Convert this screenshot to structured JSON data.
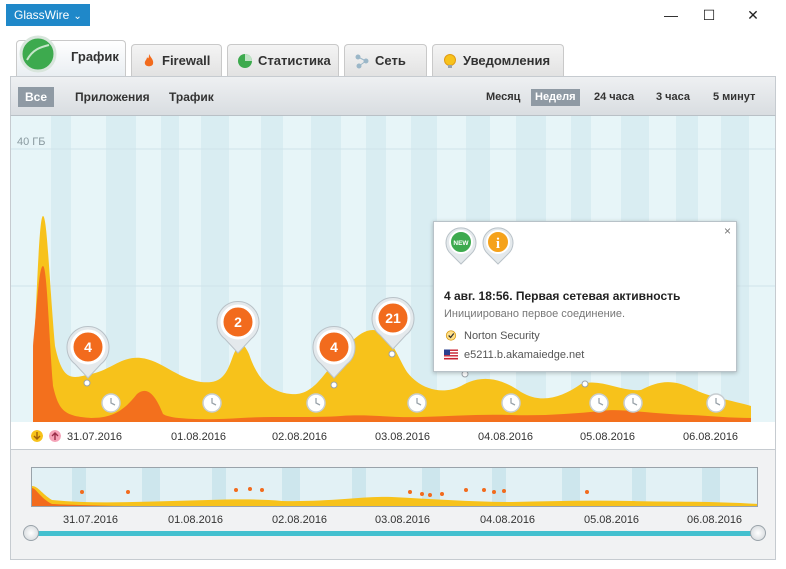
{
  "window": {
    "app_name": "GlassWire",
    "minimize": "—",
    "maximize": "☐",
    "close": "✕"
  },
  "tabs": [
    {
      "label": "График",
      "icon": "graph-icon",
      "active": true
    },
    {
      "label": "Firewall",
      "icon": "flame-icon"
    },
    {
      "label": "Статистика",
      "icon": "pie-icon"
    },
    {
      "label": "Сеть",
      "icon": "network-icon"
    },
    {
      "label": "Уведомления",
      "icon": "bulb-icon"
    }
  ],
  "filters": [
    {
      "label": "Все",
      "selected": true
    },
    {
      "label": "Приложения"
    },
    {
      "label": "Трафик"
    }
  ],
  "ranges": [
    {
      "label": "Месяц"
    },
    {
      "label": "Неделя",
      "selected": true
    },
    {
      "label": "24 часа"
    },
    {
      "label": "3 часа"
    },
    {
      "label": "5 минут"
    }
  ],
  "graph": {
    "y_label": "40 ГБ",
    "dates": [
      "31.07.2016",
      "01.08.2016",
      "02.08.2016",
      "03.08.2016",
      "04.08.2016",
      "05.08.2016",
      "06.08.2016"
    ],
    "event_badges": [
      "4",
      "2",
      "4",
      "21"
    ]
  },
  "popup": {
    "badge_new": "NEW",
    "badge_info": "i",
    "close": "×",
    "title": "4 авг. 18:56. Первая сетевая активность",
    "subtitle": "Инициировано первое соединение.",
    "app": "Norton Security",
    "host": "e5211.b.akamaiedge.net"
  },
  "colors": {
    "accent": "#1f88c9",
    "upload": "#f26b1d",
    "download": "#f7c21b",
    "slider": "#43c0cf"
  }
}
